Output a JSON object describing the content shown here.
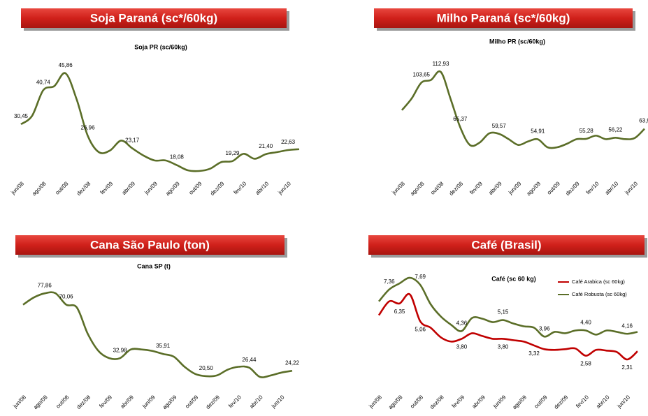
{
  "chart_data": [
    {
      "type": "line",
      "header": "Soja Paraná (sc*/60kg)",
      "title": "Soja PR (sc/60kg)",
      "color": "#5b6e28",
      "categories": [
        "jun/08",
        null,
        "ago/08",
        null,
        "out/08",
        null,
        "dez/08",
        null,
        "fev/09",
        null,
        "abr/09",
        null,
        "jun/09",
        null,
        "ago/09",
        null,
        "out/09",
        null,
        "dez/09",
        null,
        "fev/10",
        null,
        "abr/10",
        null,
        "jun/10",
        null
      ],
      "values": [
        30.45,
        33,
        40.74,
        42,
        45.86,
        38,
        26.96,
        22,
        22.5,
        25.5,
        23.17,
        21,
        19.5,
        19.5,
        18.08,
        16.5,
        16.3,
        17,
        19,
        19.29,
        21.5,
        20,
        21.4,
        22,
        22.63,
        22.9
      ],
      "value_labels": [
        "30,45",
        null,
        "40,74",
        null,
        "45,86",
        null,
        "26,96",
        null,
        null,
        null,
        "23,17",
        null,
        null,
        null,
        "18,08",
        null,
        null,
        null,
        null,
        "19,29",
        null,
        null,
        "21,40",
        null,
        "22,63",
        null
      ]
    },
    {
      "type": "line",
      "header": "Milho Paraná (sc*/60kg)",
      "title": "Milho PR (sc/60kg)",
      "color": "#5b6e28",
      "categories": [
        "jun/08",
        null,
        "ago/08",
        null,
        "out/08",
        null,
        "dez/08",
        null,
        "fev/09",
        null,
        "abr/09",
        null,
        "jun/09",
        null,
        "ago/09",
        null,
        "out/09",
        null,
        "dez/09",
        null,
        "fev/10",
        null,
        "abr/10",
        null,
        "jun/10",
        null
      ],
      "values": [
        80,
        90,
        103.65,
        106,
        112.93,
        90,
        65.37,
        50,
        52,
        60,
        59.57,
        55,
        50,
        53,
        54.91,
        48,
        48,
        51,
        55,
        55.28,
        58,
        55,
        56.22,
        55,
        56,
        63.9
      ],
      "value_labels": [
        null,
        null,
        "103,65",
        null,
        "112,93",
        null,
        "65,37",
        null,
        null,
        null,
        "59,57",
        null,
        null,
        null,
        "54,91",
        null,
        null,
        null,
        null,
        "55,28",
        null,
        null,
        "56,22",
        null,
        null,
        "63,9"
      ]
    },
    {
      "type": "line",
      "header": "Cana São Paulo (ton)",
      "title": "Cana SP (t)",
      "color": "#5b6e28",
      "categories": [
        "jun/08",
        null,
        "ago/08",
        null,
        "out/08",
        null,
        "dez/08",
        null,
        "fev/09",
        null,
        "abr/09",
        null,
        "jun/09",
        null,
        "ago/09",
        null,
        "out/09",
        null,
        "dez/09",
        null,
        "fev/10",
        null,
        "abr/10",
        null,
        "jun/10",
        null
      ],
      "values": [
        70,
        75,
        77.86,
        78,
        70.06,
        68,
        50,
        38,
        33,
        32.98,
        39,
        39,
        38,
        35.91,
        34,
        27,
        22,
        20.5,
        21,
        25,
        27,
        26.44,
        20,
        21,
        23,
        24.22
      ],
      "value_labels": [
        null,
        null,
        "77,86",
        null,
        "70,06",
        null,
        null,
        null,
        null,
        "32,98",
        null,
        null,
        null,
        "35,91",
        null,
        null,
        null,
        "20,50",
        null,
        null,
        null,
        "26,44",
        null,
        null,
        null,
        "24,22"
      ]
    },
    {
      "type": "line",
      "header": "Café (Brasil)",
      "title": "Café (sc 60 kg)",
      "categories": [
        "jun/08",
        null,
        "ago/08",
        null,
        "out/08",
        null,
        "dez/08",
        null,
        "fev/09",
        null,
        "abr/09",
        null,
        "jun/09",
        null,
        "ago/09",
        null,
        "out/09",
        null,
        "dez/09",
        null,
        "fev/10",
        null,
        "abr/10",
        null,
        "jun/10",
        null
      ],
      "series": [
        {
          "name": "Café Arabica (sc 60kg)",
          "color": "#c00000",
          "values": [
            5.5,
            6.5,
            6.35,
            7,
            5.06,
            4.6,
            3.9,
            3.6,
            3.8,
            4.2,
            4,
            3.8,
            3.8,
            3.7,
            3.6,
            3.32,
            3.05,
            3,
            3.05,
            3.1,
            2.58,
            3,
            2.95,
            2.85,
            2.31,
            2.9
          ],
          "value_labels": [
            null,
            null,
            "6,35",
            null,
            "5,06",
            null,
            null,
            null,
            "3,80",
            null,
            null,
            null,
            "3,80",
            null,
            null,
            "3,32",
            null,
            null,
            null,
            null,
            "2,58",
            null,
            null,
            null,
            "2,31",
            null
          ]
        },
        {
          "name": "Café Robusta (sc 60kg)",
          "color": "#5b6e28",
          "values": [
            6.5,
            7.36,
            7.8,
            8.2,
            7.69,
            6.3,
            5.4,
            4.8,
            4.36,
            5.3,
            5.25,
            5,
            5.15,
            4.9,
            4.7,
            4.6,
            3.96,
            4.3,
            4.2,
            4.4,
            4.4,
            4.1,
            4.4,
            4.3,
            4.16,
            4.3
          ],
          "value_labels": [
            null,
            "7,36",
            null,
            null,
            "7,69",
            null,
            null,
            null,
            "4,36",
            null,
            null,
            null,
            "5,15",
            null,
            null,
            null,
            "3,96",
            null,
            null,
            null,
            "4,40",
            null,
            null,
            null,
            "4,16",
            null
          ]
        }
      ]
    }
  ]
}
